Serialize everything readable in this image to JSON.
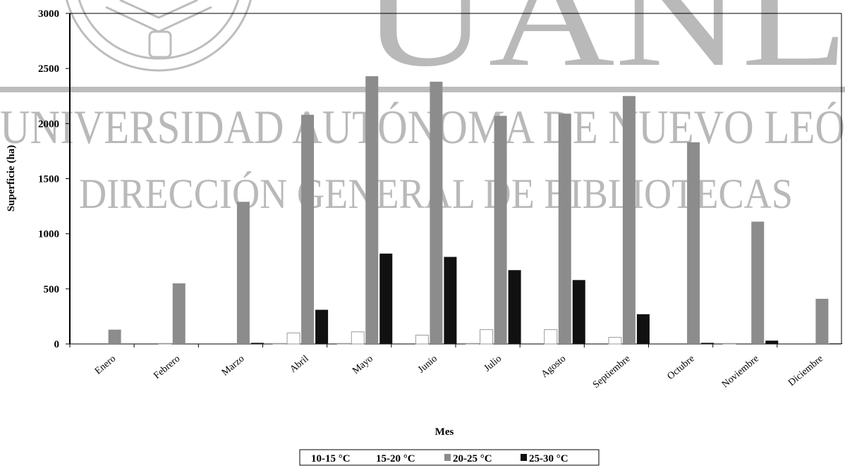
{
  "watermark": {
    "big_letters": "UANL",
    "line1": "UNIVERSIDAD AUTÓNOMA DE NUEVO LEÓ",
    "line2": "DIRECCIÓN GENERAL DE BIBLIOTECAS"
  },
  "chart_data": {
    "type": "bar",
    "title": "",
    "xlabel": "Mes",
    "ylabel": "Superficie (ha)",
    "ylim": [
      0,
      3000
    ],
    "yticks": [
      0,
      500,
      1000,
      1500,
      2000,
      2500,
      3000
    ],
    "categories": [
      "Enero",
      "Febrero",
      "Marzo",
      "Abril",
      "Mayo",
      "Junio",
      "Julio",
      "Agosto",
      "Septiembre",
      "Octubre",
      "Noviembre",
      "Diciembre"
    ],
    "series": [
      {
        "name": "10-15 °C",
        "color": "#ffffff",
        "values": [
          0,
          0,
          0,
          5,
          5,
          0,
          5,
          0,
          0,
          0,
          5,
          0
        ]
      },
      {
        "name": "15-20 °C",
        "color": "#ffffff",
        "values": [
          0,
          5,
          0,
          100,
          110,
          80,
          130,
          130,
          60,
          0,
          0,
          0
        ]
      },
      {
        "name": "20-25 °C",
        "color": "#8c8c8c",
        "values": [
          130,
          550,
          1290,
          2080,
          2430,
          2380,
          2070,
          2090,
          2250,
          1830,
          1110,
          410
        ]
      },
      {
        "name": "25-30 °C",
        "color": "#111111",
        "values": [
          0,
          0,
          10,
          310,
          820,
          790,
          670,
          580,
          270,
          10,
          30,
          5
        ]
      }
    ],
    "legend_position": "bottom",
    "grid": false
  }
}
